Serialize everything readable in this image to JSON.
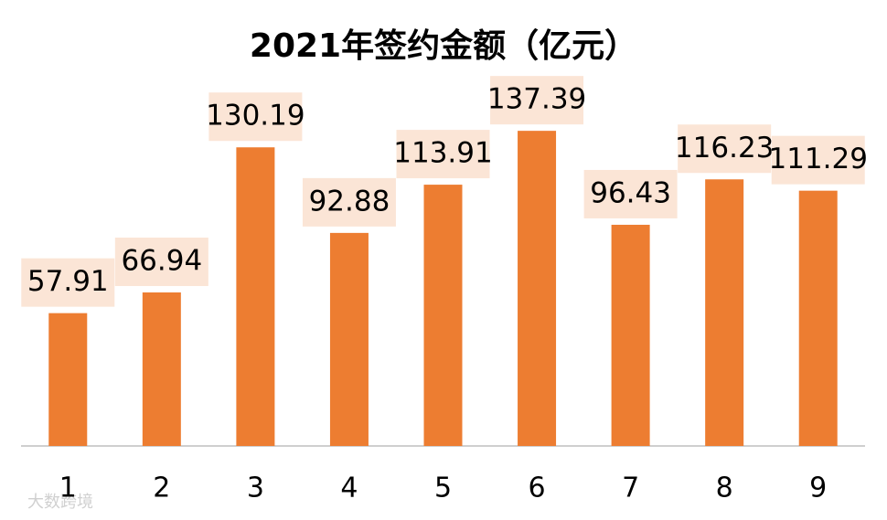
{
  "chart_data": {
    "type": "bar",
    "title": "2021年签约金额（亿元）",
    "categories": [
      "1",
      "2",
      "3",
      "4",
      "5",
      "6",
      "7",
      "8",
      "9"
    ],
    "values": [
      57.91,
      66.94,
      130.19,
      92.88,
      113.91,
      137.39,
      96.43,
      116.23,
      111.29
    ],
    "color": "#ed7d31",
    "label_background": "#fbe5d6",
    "watermark": "大数跨境"
  }
}
